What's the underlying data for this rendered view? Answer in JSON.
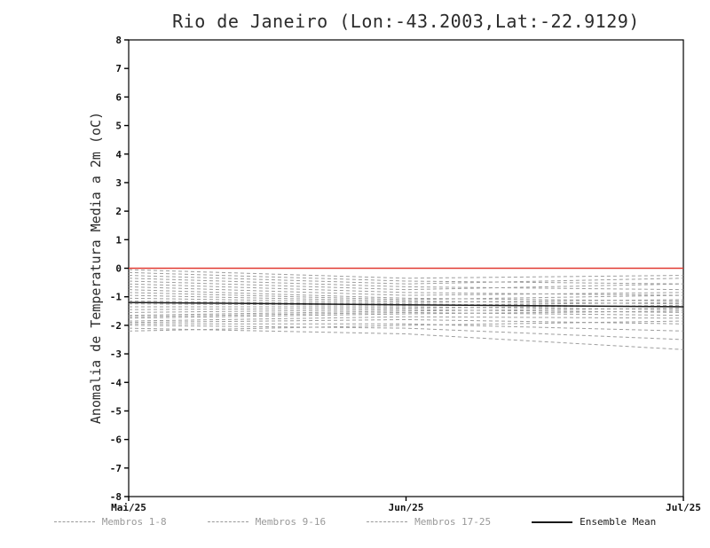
{
  "chart_data": {
    "type": "line",
    "title": "Rio de Janeiro (Lon:-43.2003,Lat:-22.9129)",
    "ylabel": "Anomalia de Temperatura Media a 2m (oC)",
    "xlabel": "",
    "x": [
      0,
      1,
      2
    ],
    "x_tick_labels": [
      "Mai/25",
      "Jun/25",
      "Jul/25"
    ],
    "ylim": [
      -8,
      8
    ],
    "ytick_step": 1,
    "grid": false,
    "legend_position": "bottom",
    "zero_line": {
      "value": 0,
      "color": "#e13b32"
    },
    "member_style": {
      "color": "#9e9e9e",
      "dash": "4,3",
      "width": 1
    },
    "mean_style": {
      "color": "#1a1a1a",
      "width": 1.5
    },
    "series": [
      {
        "name": "Ensemble Mean",
        "role": "mean",
        "values": [
          -1.2,
          -1.28,
          -1.35
        ]
      },
      {
        "name": "Membro 1",
        "role": "member",
        "group": "1-8",
        "values": [
          -0.05,
          -0.35,
          -0.25
        ]
      },
      {
        "name": "Membro 2",
        "role": "member",
        "group": "1-8",
        "values": [
          -0.15,
          -0.45,
          -0.55
        ]
      },
      {
        "name": "Membro 3",
        "role": "member",
        "group": "1-8",
        "values": [
          -0.25,
          -0.55,
          -0.35
        ]
      },
      {
        "name": "Membro 4",
        "role": "member",
        "group": "1-8",
        "values": [
          -0.35,
          -0.65,
          -0.75
        ]
      },
      {
        "name": "Membro 5",
        "role": "member",
        "group": "1-8",
        "values": [
          -0.45,
          -0.75,
          -0.55
        ]
      },
      {
        "name": "Membro 6",
        "role": "member",
        "group": "1-8",
        "values": [
          -0.55,
          -0.85,
          -0.95
        ]
      },
      {
        "name": "Membro 7",
        "role": "member",
        "group": "1-8",
        "values": [
          -0.65,
          -0.95,
          -0.85
        ]
      },
      {
        "name": "Membro 8",
        "role": "member",
        "group": "1-8",
        "values": [
          -0.75,
          -1.05,
          -1.15
        ]
      },
      {
        "name": "Membro 9",
        "role": "member",
        "group": "9-16",
        "values": [
          -0.85,
          -1.1,
          -0.95
        ]
      },
      {
        "name": "Membro 10",
        "role": "member",
        "group": "9-16",
        "values": [
          -0.95,
          -1.15,
          -1.25
        ]
      },
      {
        "name": "Membro 11",
        "role": "member",
        "group": "9-16",
        "values": [
          -1.05,
          -1.2,
          -1.1
        ]
      },
      {
        "name": "Membro 12",
        "role": "member",
        "group": "9-16",
        "values": [
          -1.15,
          -1.25,
          -1.35
        ]
      },
      {
        "name": "Membro 13",
        "role": "member",
        "group": "9-16",
        "values": [
          -1.25,
          -1.3,
          -1.2
        ]
      },
      {
        "name": "Membro 14",
        "role": "member",
        "group": "9-16",
        "values": [
          -1.35,
          -1.35,
          -1.45
        ]
      },
      {
        "name": "Membro 15",
        "role": "member",
        "group": "9-16",
        "values": [
          -1.45,
          -1.4,
          -1.3
        ]
      },
      {
        "name": "Membro 16",
        "role": "member",
        "group": "9-16",
        "values": [
          -1.55,
          -1.45,
          -1.55
        ]
      },
      {
        "name": "Membro 17",
        "role": "member",
        "group": "17-25",
        "values": [
          -1.65,
          -1.5,
          -1.4
        ]
      },
      {
        "name": "Membro 18",
        "role": "member",
        "group": "17-25",
        "values": [
          -1.7,
          -1.55,
          -1.65
        ]
      },
      {
        "name": "Membro 19",
        "role": "member",
        "group": "17-25",
        "values": [
          -1.75,
          -1.6,
          -1.5
        ]
      },
      {
        "name": "Membro 20",
        "role": "member",
        "group": "17-25",
        "values": [
          -1.85,
          -1.7,
          -1.75
        ]
      },
      {
        "name": "Membro 21",
        "role": "member",
        "group": "17-25",
        "values": [
          -1.9,
          -1.8,
          -1.95
        ]
      },
      {
        "name": "Membro 22",
        "role": "member",
        "group": "17-25",
        "values": [
          -1.95,
          -1.95,
          -2.2
        ]
      },
      {
        "name": "Membro 23",
        "role": "member",
        "group": "17-25",
        "values": [
          -2.0,
          -2.1,
          -2.5
        ]
      },
      {
        "name": "Membro 24",
        "role": "member",
        "group": "17-25",
        "values": [
          -2.1,
          -2.3,
          -2.85
        ]
      },
      {
        "name": "Membro 25",
        "role": "member",
        "group": "17-25",
        "values": [
          -2.2,
          -2.0,
          -1.85
        ]
      }
    ],
    "legend": [
      {
        "label": "Membros 1-8",
        "style": "dashed",
        "color": "#9a9a9a"
      },
      {
        "label": "Membros 9-16",
        "style": "dashed",
        "color": "#9a9a9a"
      },
      {
        "label": "Membros 17-25",
        "style": "dashed",
        "color": "#9a9a9a"
      },
      {
        "label": "Ensemble Mean",
        "style": "solid",
        "color": "#1a1a1a"
      }
    ]
  }
}
